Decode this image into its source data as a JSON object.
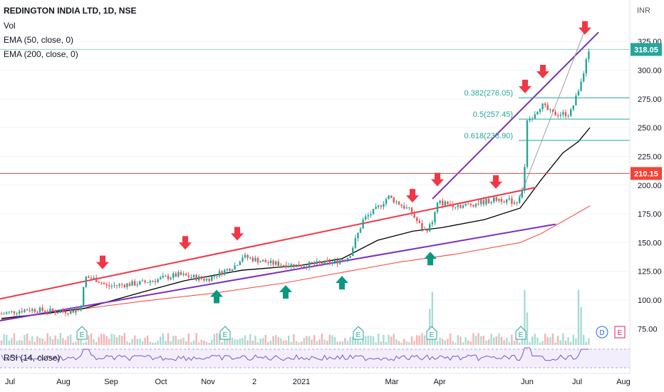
{
  "legend": {
    "title": "REDINGTON INDIA LTD, 1D, NSE",
    "vol": "Vol",
    "ema50": "EMA (50, close, 0)",
    "ema200": "EMA (200, close, 0)"
  },
  "rsi_label": "RSI (14, close)",
  "currency_label": "INR",
  "chart_data": {
    "type": "candlestick",
    "x_tick_labels": [
      "Jul",
      "Aug",
      "Sep",
      "Oct",
      "Nov",
      "2",
      "2021",
      "Mar",
      "Apr",
      "Jun",
      "Jul",
      "Aug"
    ],
    "y_tick_labels": [
      "75.00",
      "100.00",
      "125.00",
      "150.00",
      "175.00",
      "200.00",
      "225.00",
      "250.00",
      "275.00",
      "300.00",
      "325.00"
    ],
    "ylim": [
      62,
      345
    ],
    "last_price": {
      "label": "318.05",
      "value": 318.05,
      "color": "#26a69a"
    },
    "horizontal_level": {
      "label": "210.15",
      "value": 210.15,
      "color": "#f44336"
    },
    "fibonacci": [
      {
        "label": "0.382(276.05)",
        "value": 276.05
      },
      {
        "label": "0.5(257.45)",
        "value": 257.45
      },
      {
        "label": "0.618(238.90)",
        "value": 238.9
      }
    ],
    "earnings_markers": [
      "E",
      "E",
      "E",
      "E",
      "E",
      "E",
      "E"
    ],
    "dividend_marker": "D",
    "earnings_next": "E",
    "colors": {
      "up": "#26a69a",
      "down": "#ef5350",
      "ema50": "#000000",
      "ema200": "#f44336",
      "resistance": "#f23645",
      "support": "#7b2fbf",
      "rsi": "#7e57c2"
    }
  }
}
